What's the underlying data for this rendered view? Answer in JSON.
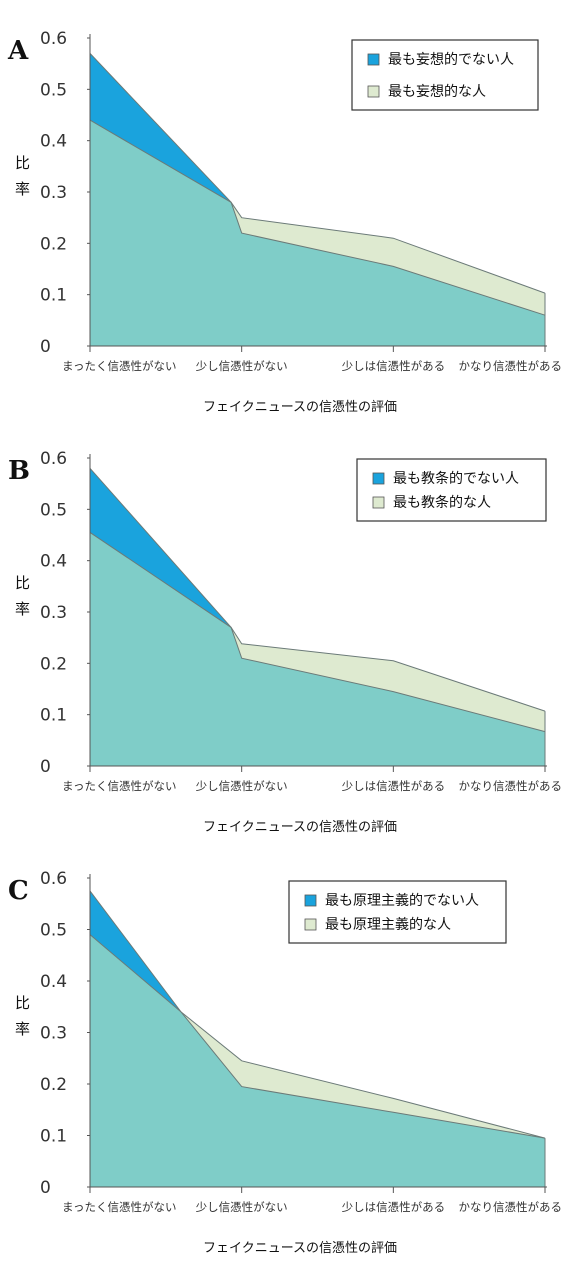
{
  "colors": {
    "least": "#1aa3dd",
    "most": "#deead0",
    "overlap": "#7fcdc8",
    "edge": "#6b7a78",
    "axis": "#555555"
  },
  "chart_data": [
    {
      "type": "area",
      "panel": "A",
      "categories": [
        "まったく信憑性がない",
        "少し信憑性がない",
        "少しは信憑性がある",
        "かなり信憑性がある"
      ],
      "series": [
        {
          "name": "最も妄想的でない人",
          "values": [
            0.57,
            0.22,
            0.155,
            0.06
          ]
        },
        {
          "name": "最も妄想的な人",
          "values": [
            0.44,
            0.25,
            0.21,
            0.103
          ]
        }
      ],
      "crossing": {
        "x": 0.93,
        "y": 0.28
      },
      "ylabel": "比率",
      "xlabel": "フェイクニュースの信憑性の評価",
      "ylim": [
        0,
        0.6
      ],
      "yticks": [
        "0",
        "0.1",
        "0.2",
        "0.3",
        "0.4",
        "0.5",
        "0.6"
      ],
      "legend": "top-right"
    },
    {
      "type": "area",
      "panel": "B",
      "categories": [
        "まったく信憑性がない",
        "少し信憑性がない",
        "少しは信憑性がある",
        "かなり信憑性がある"
      ],
      "series": [
        {
          "name": "最も教条的でない人",
          "values": [
            0.58,
            0.21,
            0.145,
            0.067
          ]
        },
        {
          "name": "最も教条的な人",
          "values": [
            0.455,
            0.238,
            0.205,
            0.107
          ]
        }
      ],
      "crossing": {
        "x": 0.93,
        "y": 0.27
      },
      "ylabel": "比率",
      "xlabel": "フェイクニュースの信憑性の評価",
      "ylim": [
        0,
        0.6
      ],
      "yticks": [
        "0",
        "0.1",
        "0.2",
        "0.3",
        "0.4",
        "0.5",
        "0.6"
      ],
      "legend": "top-right"
    },
    {
      "type": "area",
      "panel": "C",
      "categories": [
        "まったく信憑性がない",
        "少し信憑性がない",
        "少しは信憑性がある",
        "かなり信憑性がある"
      ],
      "series": [
        {
          "name": "最も原理主義的でない人",
          "values": [
            0.575,
            0.195,
            0.145,
            0.095
          ]
        },
        {
          "name": "最も原理主義的な人",
          "values": [
            0.49,
            0.245,
            0.172,
            0.095
          ]
        }
      ],
      "crossing": {
        "x": 0.6,
        "y": 0.34
      },
      "ylabel": "比率",
      "xlabel": "フェイクニュースの信憑性の評価",
      "ylim": [
        0,
        0.6
      ],
      "yticks": [
        "0",
        "0.1",
        "0.2",
        "0.3",
        "0.4",
        "0.5",
        "0.6"
      ],
      "legend": "top-right"
    }
  ]
}
